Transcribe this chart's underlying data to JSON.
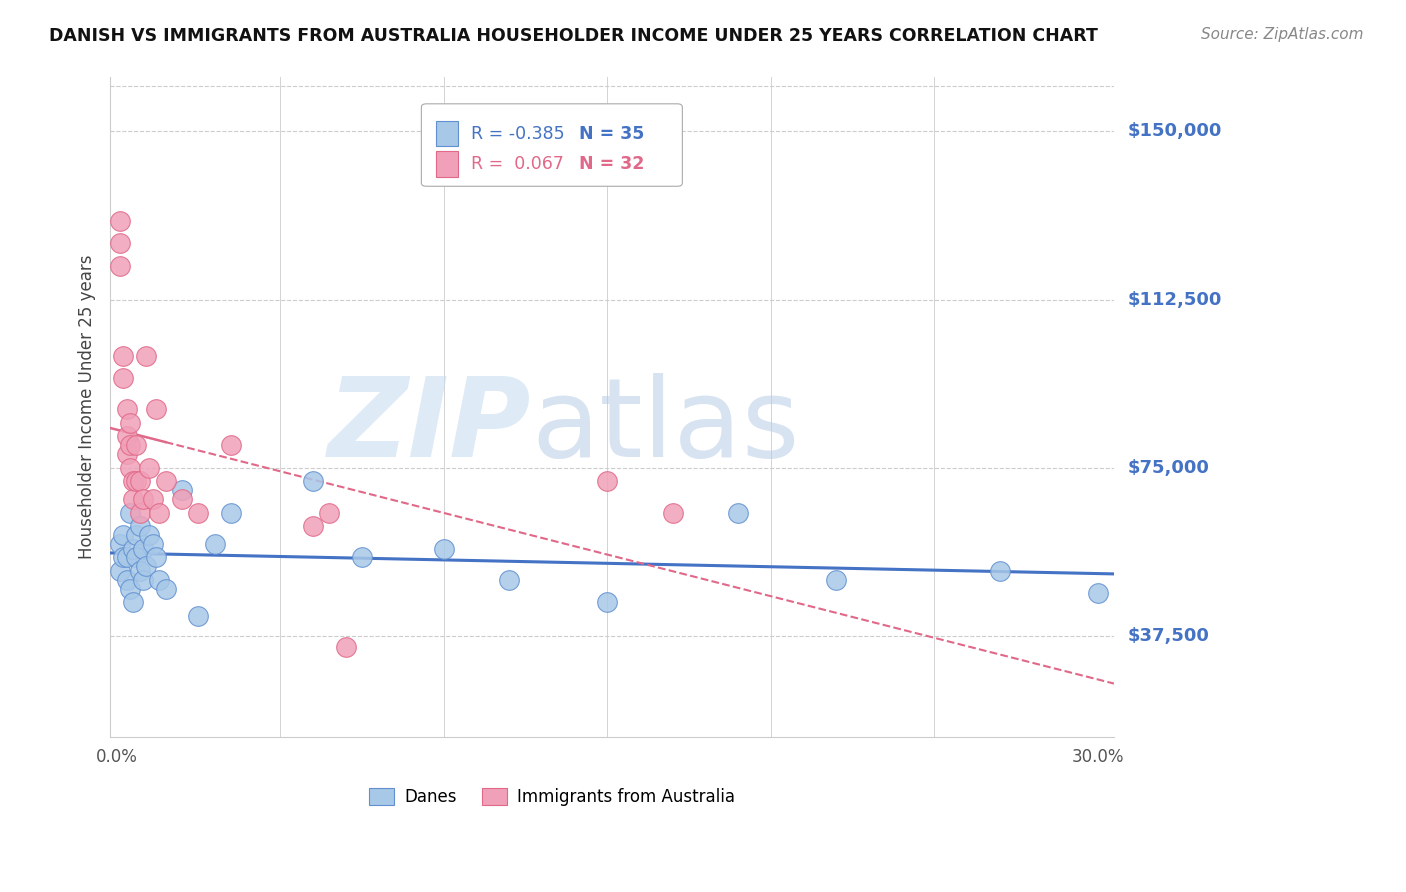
{
  "title": "DANISH VS IMMIGRANTS FROM AUSTRALIA HOUSEHOLDER INCOME UNDER 25 YEARS CORRELATION CHART",
  "source": "Source: ZipAtlas.com",
  "ylabel": "Householder Income Under 25 years",
  "ytick_labels": [
    "$37,500",
    "$75,000",
    "$112,500",
    "$150,000"
  ],
  "ytick_values": [
    37500,
    75000,
    112500,
    150000
  ],
  "ymin": 15000,
  "ymax": 162000,
  "xmin": -0.002,
  "xmax": 0.305,
  "legend1_r": "-0.385",
  "legend1_n": "35",
  "legend2_r": "0.067",
  "legend2_n": "32",
  "blue_scatter_color": "#A8C8E8",
  "blue_edge_color": "#6090D0",
  "pink_scatter_color": "#F0A0B8",
  "pink_edge_color": "#E06888",
  "line_blue_color": "#4472C4",
  "line_pink_color": "#E06888",
  "grid_color": "#CCCCCC",
  "danes_x": [
    0.001,
    0.001,
    0.002,
    0.002,
    0.003,
    0.003,
    0.004,
    0.004,
    0.005,
    0.005,
    0.006,
    0.006,
    0.007,
    0.007,
    0.008,
    0.008,
    0.009,
    0.01,
    0.011,
    0.012,
    0.013,
    0.015,
    0.02,
    0.025,
    0.03,
    0.035,
    0.06,
    0.075,
    0.1,
    0.12,
    0.15,
    0.19,
    0.22,
    0.27,
    0.3
  ],
  "danes_y": [
    58000,
    52000,
    60000,
    55000,
    55000,
    50000,
    65000,
    48000,
    57000,
    45000,
    60000,
    55000,
    62000,
    52000,
    57000,
    50000,
    53000,
    60000,
    58000,
    55000,
    50000,
    48000,
    70000,
    42000,
    58000,
    65000,
    72000,
    55000,
    57000,
    50000,
    45000,
    65000,
    50000,
    52000,
    47000
  ],
  "aus_x": [
    0.001,
    0.001,
    0.001,
    0.002,
    0.002,
    0.003,
    0.003,
    0.003,
    0.004,
    0.004,
    0.004,
    0.005,
    0.005,
    0.006,
    0.006,
    0.007,
    0.007,
    0.008,
    0.009,
    0.01,
    0.011,
    0.012,
    0.013,
    0.015,
    0.02,
    0.025,
    0.035,
    0.06,
    0.065,
    0.07,
    0.15,
    0.17
  ],
  "aus_y": [
    130000,
    125000,
    120000,
    100000,
    95000,
    88000,
    82000,
    78000,
    85000,
    80000,
    75000,
    72000,
    68000,
    80000,
    72000,
    72000,
    65000,
    68000,
    100000,
    75000,
    68000,
    88000,
    65000,
    72000,
    68000,
    65000,
    80000,
    62000,
    65000,
    35000,
    72000,
    65000
  ]
}
